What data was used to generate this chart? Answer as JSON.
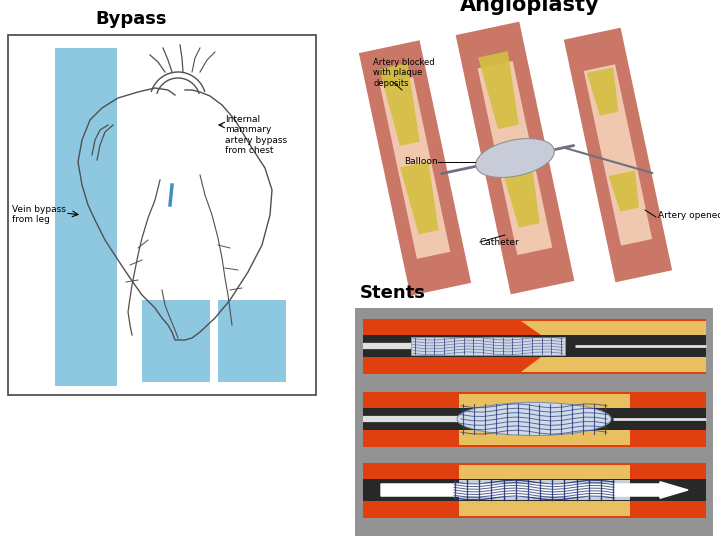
{
  "bypass_label": "Bypass",
  "angioplasty_label": "Angioplasty",
  "stents_label": "Stents",
  "bg_color": "#ffffff",
  "bypass_box_border": "#444444",
  "bypass_blue": "#8ec8e0",
  "label_fontsize": 13,
  "title_fontsize": 15,
  "artery_outer": "#c87868",
  "artery_inner": "#e8b8a8",
  "plaque_color": "#d8c860",
  "balloon_color": "#c8ced8",
  "catheter_color": "#888898",
  "stents_bg": "#909090",
  "stent_artery_red": "#e04010",
  "stent_artery_inner_red": "#c83000",
  "stent_plaque": "#e8c060",
  "stent_lumen": "#c8d8e8",
  "stent_mesh": "#283878",
  "stent_catheter": "#e0e0e0",
  "white": "#ffffff"
}
